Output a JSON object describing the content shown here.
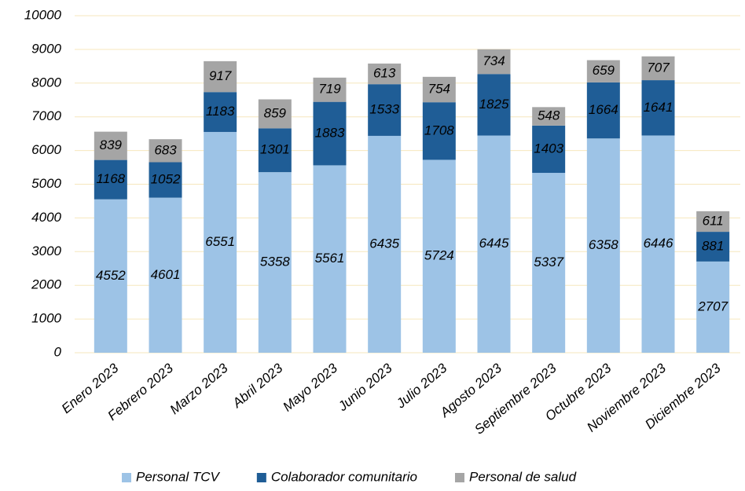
{
  "chart_data": {
    "type": "stacked_bar",
    "categories": [
      "Enero 2023",
      "Febrero 2023",
      "Marzo 2023",
      "Abril 2023",
      "Mayo 2023",
      "Junio 2023",
      "Julio 2023",
      "Agosto 2023",
      "Septiembre 2023",
      "Octubre 2023",
      "Noviembre 2023",
      "Diciembre 2023"
    ],
    "series": [
      {
        "name": "Personal TCV",
        "color": "#9dc3e6",
        "values": [
          4552,
          4601,
          6551,
          5358,
          5561,
          6435,
          5724,
          6445,
          5337,
          6358,
          6446,
          2707
        ]
      },
      {
        "name": "Colaborador comunitario",
        "color": "#1f5d96",
        "values": [
          1168,
          1052,
          1183,
          1301,
          1883,
          1533,
          1708,
          1825,
          1403,
          1664,
          1641,
          881
        ]
      },
      {
        "name": "Personal de salud",
        "color": "#a5a5a5",
        "values": [
          839,
          683,
          917,
          859,
          719,
          613,
          754,
          734,
          548,
          659,
          707,
          611
        ]
      }
    ],
    "ylim": [
      0,
      10000
    ],
    "yticks": [
      0,
      1000,
      2000,
      3000,
      4000,
      5000,
      6000,
      7000,
      8000,
      9000,
      10000
    ],
    "grid": true,
    "legend": "bottom"
  }
}
